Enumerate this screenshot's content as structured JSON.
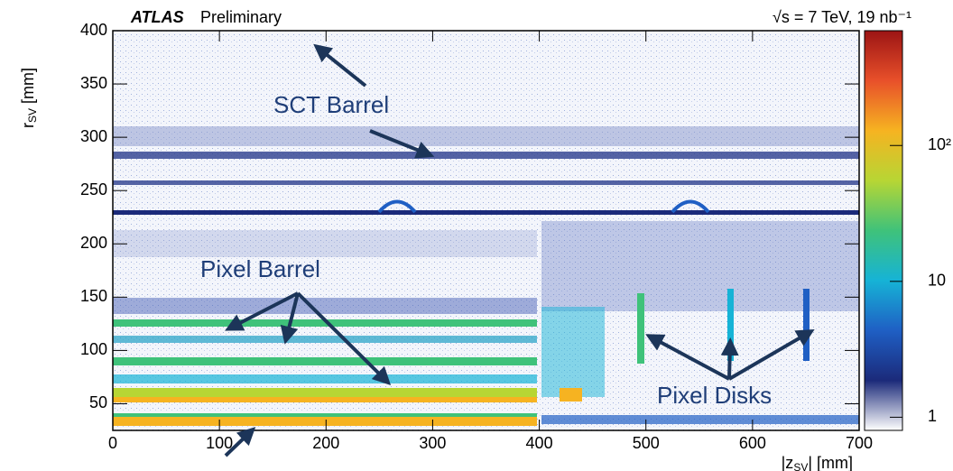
{
  "chart_data": {
    "type": "heatmap",
    "title": {
      "experiment": "ATLAS",
      "status": "Preliminary",
      "energy": "√s = 7 TeV, 19 nb⁻¹"
    },
    "y_label": {
      "main": "r",
      "sub": "SV",
      "unit": " [mm]"
    },
    "x_label": {
      "main": "|z",
      "sub": "SV",
      "unit": "| [mm]"
    },
    "annotations": [
      "SCT Barrel",
      "Pixel Barrel",
      "Pixel Disks"
    ],
    "xlim": [
      0,
      700
    ],
    "xticks": [
      0,
      100,
      200,
      300,
      400,
      500,
      600,
      700
    ],
    "ylim": [
      25,
      400
    ],
    "yticks": [
      50,
      100,
      150,
      200,
      250,
      300,
      350,
      400
    ],
    "zlim": [
      0.8,
      700
    ],
    "zscale": "log",
    "zticks": [
      1,
      10,
      {
        "value": 100,
        "label": "10²"
      }
    ],
    "colormap": [
      "#ffffff",
      "#1b2a7a",
      "#1f5fc4",
      "#16b3d6",
      "#3fc27a",
      "#b7d634",
      "#f6b321",
      "#e8502a",
      "#9c1414"
    ]
  }
}
